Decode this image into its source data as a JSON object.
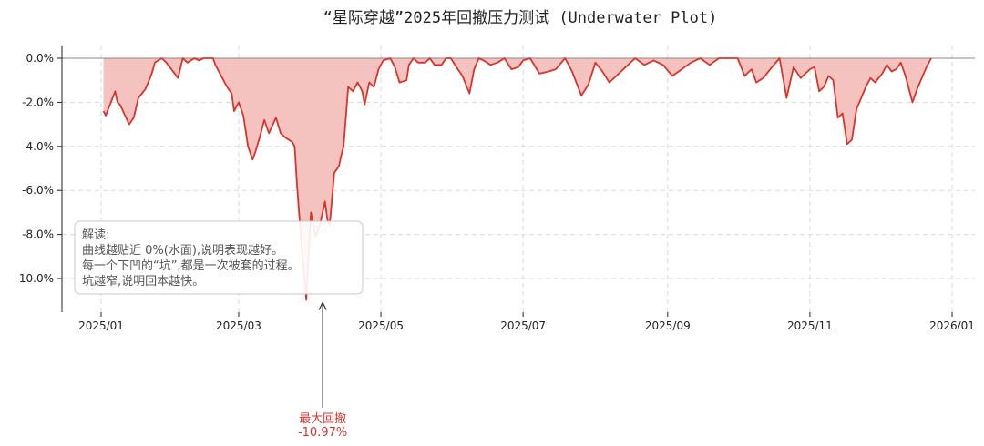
{
  "chart_data": {
    "type": "area",
    "title": "“星际穿越”2025年回撤压力测试 (Underwater Plot)",
    "xlabel": "",
    "ylabel": "",
    "x_ticks": [
      "2025/01",
      "2025/03",
      "2025/05",
      "2025/07",
      "2025/09",
      "2025/11",
      "2026/01"
    ],
    "y_ticks": [
      "0.0%",
      "-2.0%",
      "-4.0%",
      "-6.0%",
      "-8.0%",
      "-10.0%"
    ],
    "ylim": [
      -11.3,
      0.6
    ],
    "xlim": [
      "2024-12-20",
      "2026-01-05"
    ],
    "grid": true,
    "colors": {
      "line": "#d9342b",
      "fill": "#f4c2bf",
      "zero_line": "#888888"
    },
    "series": [
      {
        "x": [
          "2025-01-02",
          "2025-01-03",
          "2025-01-07",
          "2025-01-08",
          "2025-01-09",
          "2025-01-10",
          "2025-01-13",
          "2025-01-15",
          "2025-01-17",
          "2025-01-20",
          "2025-01-22",
          "2025-01-23",
          "2025-01-24",
          "2025-01-27",
          "2025-01-29",
          "2025-02-03",
          "2025-02-05",
          "2025-02-07",
          "2025-02-10",
          "2025-02-12",
          "2025-02-14",
          "2025-02-17",
          "2025-02-18",
          "2025-02-19",
          "2025-02-21",
          "2025-02-24",
          "2025-02-26",
          "2025-02-27",
          "2025-03-01",
          "2025-03-03",
          "2025-03-05",
          "2025-03-07",
          "2025-03-08",
          "2025-03-10",
          "2025-03-12",
          "2025-03-14",
          "2025-03-17",
          "2025-03-19",
          "2025-03-21",
          "2025-03-24",
          "2025-03-25",
          "2025-03-26",
          "2025-03-28",
          "2025-03-30",
          "2025-04-01",
          "2025-04-03",
          "2025-04-05",
          "2025-04-07",
          "2025-04-08",
          "2025-04-09",
          "2025-04-11",
          "2025-04-13",
          "2025-04-14",
          "2025-04-15",
          "2025-04-17",
          "2025-04-19",
          "2025-04-21",
          "2025-04-23",
          "2025-04-24",
          "2025-04-26",
          "2025-04-28",
          "2025-04-30",
          "2025-05-02",
          "2025-05-05",
          "2025-05-07",
          "2025-05-09",
          "2025-05-12",
          "2025-05-13",
          "2025-05-15",
          "2025-05-17",
          "2025-05-20",
          "2025-05-22",
          "2025-05-24",
          "2025-05-27",
          "2025-05-29",
          "2025-05-31",
          "2025-06-03",
          "2025-06-05",
          "2025-06-08",
          "2025-06-10",
          "2025-06-12",
          "2025-06-14",
          "2025-06-17",
          "2025-06-20",
          "2025-06-23",
          "2025-06-26",
          "2025-06-29",
          "2025-07-01",
          "2025-07-04",
          "2025-07-08",
          "2025-07-12",
          "2025-07-15",
          "2025-07-19",
          "2025-07-22",
          "2025-07-26",
          "2025-07-29",
          "2025-08-01",
          "2025-08-04",
          "2025-08-07",
          "2025-08-10",
          "2025-08-14",
          "2025-08-18",
          "2025-08-22",
          "2025-08-26",
          "2025-08-30",
          "2025-09-03",
          "2025-09-07",
          "2025-09-11",
          "2025-09-15",
          "2025-09-19",
          "2025-09-23",
          "2025-09-27",
          "2025-10-01",
          "2025-10-04",
          "2025-10-07",
          "2025-10-09",
          "2025-10-12",
          "2025-10-15",
          "2025-10-19",
          "2025-10-22",
          "2025-10-25",
          "2025-10-28",
          "2025-11-01",
          "2025-11-03",
          "2025-11-05",
          "2025-11-07",
          "2025-11-09",
          "2025-11-11",
          "2025-11-13",
          "2025-11-15",
          "2025-11-17",
          "2025-11-19",
          "2025-11-21",
          "2025-11-23",
          "2025-11-25",
          "2025-11-27",
          "2025-11-29",
          "2025-12-02",
          "2025-12-04",
          "2025-12-06",
          "2025-12-08",
          "2025-12-10",
          "2025-12-12",
          "2025-12-15",
          "2025-12-17",
          "2025-12-19",
          "2025-12-21",
          "2025-12-23"
        ],
        "values": [
          -2.4,
          -2.6,
          -1.5,
          -2.0,
          -2.1,
          -2.3,
          -3.0,
          -2.7,
          -1.8,
          -1.4,
          -0.9,
          -0.6,
          -0.2,
          0.0,
          -0.2,
          -0.9,
          0.0,
          -0.2,
          0.0,
          -0.1,
          0.0,
          0.0,
          0.0,
          -0.3,
          -0.7,
          -1.3,
          -1.6,
          -2.4,
          -2.0,
          -2.6,
          -4.0,
          -4.6,
          -4.3,
          -3.6,
          -2.8,
          -3.4,
          -2.7,
          -3.4,
          -3.6,
          -3.8,
          -4.0,
          -5.7,
          -8.6,
          -10.97,
          -7.0,
          -8.1,
          -7.5,
          -6.5,
          -7.3,
          -7.6,
          -5.2,
          -4.9,
          -4.4,
          -4.0,
          -1.3,
          -1.5,
          -1.1,
          -1.5,
          -2.1,
          -1.1,
          -1.3,
          -0.5,
          -0.1,
          0.0,
          -0.4,
          -1.1,
          -1.0,
          -0.3,
          0.0,
          -0.2,
          -0.2,
          0.0,
          -0.3,
          -0.3,
          0.0,
          0.0,
          -0.5,
          -0.8,
          -1.6,
          -0.5,
          0.0,
          -0.1,
          -0.3,
          -0.2,
          0.0,
          -0.5,
          -0.4,
          -0.1,
          0.0,
          -0.7,
          -0.6,
          -0.5,
          0.0,
          -0.6,
          -1.7,
          -1.2,
          -0.2,
          -0.6,
          -1.1,
          -0.8,
          -0.4,
          0.0,
          -0.3,
          -0.1,
          -0.3,
          -0.8,
          -0.5,
          -0.2,
          0.0,
          -0.3,
          0.0,
          0.0,
          0.0,
          -0.8,
          -0.5,
          -1.1,
          -0.9,
          -0.5,
          0.0,
          -1.8,
          -0.4,
          -0.9,
          -0.5,
          -0.4,
          -1.5,
          -1.3,
          -0.8,
          -1.0,
          -2.7,
          -2.5,
          -3.9,
          -3.7,
          -2.3,
          -1.8,
          -1.3,
          -0.9,
          -1.1,
          -0.7,
          -0.3,
          -0.6,
          -0.5,
          -0.2,
          -0.8,
          -2.0,
          -1.4,
          -0.9,
          -0.4,
          0.0
        ]
      }
    ],
    "annotations": {
      "note": {
        "lines": [
          "解读:",
          "曲线越贴近 0%(水面),说明表现越好。",
          "每一个下凹的“坑”,都是一次被套的过程。",
          "坑越窄,说明回本越快。"
        ]
      },
      "max_drawdown": {
        "label": "最大回撤",
        "value_text": "-10.97%",
        "x": "2025-04-06",
        "y": -10.97
      }
    }
  }
}
